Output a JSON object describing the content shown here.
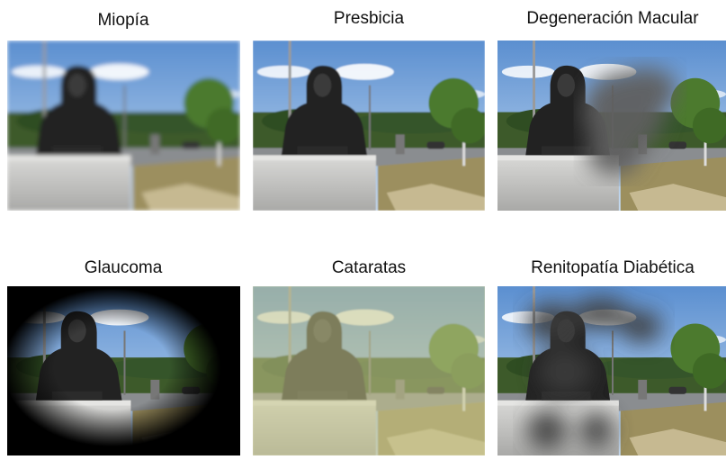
{
  "panels": [
    {
      "label": "Miopía"
    },
    {
      "label": "Presbicia"
    },
    {
      "label": "Degeneración Macular"
    },
    {
      "label": "Glaucoma"
    },
    {
      "label": "Cataratas"
    },
    {
      "label": "Renitopatía Diabética"
    }
  ]
}
